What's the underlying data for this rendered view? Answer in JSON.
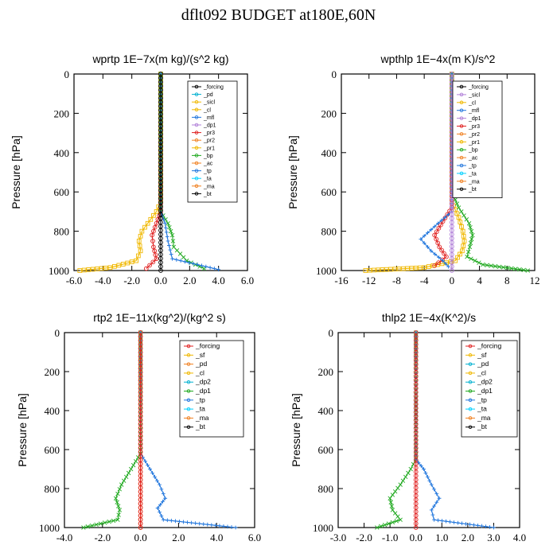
{
  "page": {
    "title": "dflt092  BUDGET at180E,60N"
  },
  "chart_data": [
    {
      "type": "line",
      "title": "wprtp   1E−7x(m kg)/(s^2 kg)",
      "ylabel": "Pressure [hPa]",
      "xlim": [
        -6,
        6
      ],
      "ylim": [
        1000,
        0
      ],
      "xticks": [
        "-6.0",
        "-4.0",
        "-2.0",
        "0.0",
        "2.0",
        "4.0",
        "6.0"
      ],
      "yticks": [
        "0",
        "200",
        "400",
        "600",
        "800",
        "1000"
      ],
      "legend": [
        "_forcing",
        "_pd",
        "_sicl",
        "_cl",
        "_mfl",
        "_dp1",
        "_pr3",
        "_pr2",
        "_pr1",
        "_bp",
        "_ac",
        "_tp",
        "_ta",
        "_ma",
        "_bt"
      ],
      "series": [
        {
          "name": "_pr1",
          "color": "#f0b800",
          "marker": "square",
          "points": [
            [
              0,
              0
            ],
            [
              0,
              650
            ],
            [
              -0.3,
              700
            ],
            [
              -0.9,
              760
            ],
            [
              -1.3,
              800
            ],
            [
              -1.5,
              850
            ],
            [
              -1.4,
              900
            ],
            [
              -1.7,
              950
            ],
            [
              -3.5,
              985
            ],
            [
              -5.6,
              1000
            ]
          ]
        },
        {
          "name": "_pr3",
          "color": "#e02020",
          "marker": "circle",
          "points": [
            [
              0,
              0
            ],
            [
              0,
              700
            ],
            [
              -0.3,
              760
            ],
            [
              -0.6,
              820
            ],
            [
              -0.5,
              880
            ],
            [
              -0.3,
              940
            ],
            [
              -1.0,
              990
            ]
          ]
        },
        {
          "name": "_bp",
          "color": "#22aa22",
          "marker": "x",
          "points": [
            [
              0,
              0
            ],
            [
              0,
              700
            ],
            [
              0.5,
              760
            ],
            [
              0.8,
              820
            ],
            [
              0.9,
              880
            ],
            [
              1.8,
              950
            ],
            [
              3.0,
              990
            ]
          ]
        },
        {
          "name": "_tp",
          "color": "#2277dd",
          "marker": "plus",
          "points": [
            [
              0,
              0
            ],
            [
              0,
              700
            ],
            [
              0.3,
              760
            ],
            [
              0.5,
              850
            ],
            [
              0.8,
              940
            ],
            [
              4.0,
              995
            ]
          ]
        },
        {
          "name": "_forcing",
          "color": "#000000",
          "marker": "circle",
          "points": [
            [
              0,
              0
            ],
            [
              0,
              1000
            ]
          ]
        }
      ]
    },
    {
      "type": "line",
      "title": "wpthlp   1E−4x(m K)/s^2",
      "ylabel": "Pressure [hPa]",
      "xlim": [
        -16,
        12
      ],
      "ylim": [
        1000,
        0
      ],
      "xticks": [
        "-16",
        "-12",
        "-8",
        "-4",
        "0",
        "4",
        "8",
        "12"
      ],
      "yticks": [
        "0",
        "200",
        "400",
        "600",
        "800",
        "1000"
      ],
      "legend": [
        "_forcing",
        "_sicl",
        "_cl",
        "_mfl",
        "_dp1",
        "_pr3",
        "_pr2",
        "_pr1",
        "_bp",
        "_ac",
        "_tp",
        "_ta",
        "_ma",
        "_bt"
      ],
      "series": [
        {
          "name": "_pr1",
          "color": "#f0b800",
          "marker": "square",
          "points": [
            [
              0,
              0
            ],
            [
              0,
              650
            ],
            [
              1.0,
              730
            ],
            [
              1.6,
              800
            ],
            [
              1.8,
              850
            ],
            [
              1.5,
              900
            ],
            [
              0.5,
              950
            ],
            [
              -4,
              985
            ],
            [
              -12.5,
              1000
            ]
          ]
        },
        {
          "name": "_bp",
          "color": "#22aa22",
          "marker": "x",
          "points": [
            [
              0,
              0
            ],
            [
              0,
              600
            ],
            [
              1.0,
              680
            ],
            [
              2.5,
              760
            ],
            [
              3.0,
              820
            ],
            [
              2.6,
              880
            ],
            [
              2.2,
              930
            ],
            [
              4.5,
              970
            ],
            [
              11,
              1000
            ]
          ]
        },
        {
          "name": "_pr3",
          "color": "#e02020",
          "marker": "circle",
          "points": [
            [
              0,
              0
            ],
            [
              0,
              680
            ],
            [
              -1.3,
              750
            ],
            [
              -2.5,
              820
            ],
            [
              -1.8,
              880
            ],
            [
              -0.8,
              930
            ],
            [
              -2.5,
              975
            ]
          ]
        },
        {
          "name": "_tp",
          "color": "#2277dd",
          "marker": "plus",
          "points": [
            [
              0,
              0
            ],
            [
              0,
              700
            ],
            [
              -2.0,
              760
            ],
            [
              -4.5,
              840
            ],
            [
              -3.0,
              900
            ],
            [
              -1.3,
              950
            ],
            [
              -0.5,
              980
            ]
          ]
        },
        {
          "name": "_sicl",
          "color": "#b07fd8",
          "marker": "circle",
          "points": [
            [
              0,
              0
            ],
            [
              0,
              1000
            ]
          ]
        }
      ]
    },
    {
      "type": "line",
      "title": "rtp2   1E−11x(kg^2)/(kg^2 s)",
      "ylabel": "Pressure [hPa]",
      "xlim": [
        -4,
        6
      ],
      "ylim": [
        1000,
        0
      ],
      "xticks": [
        "-4.0",
        "-2.0",
        "0.0",
        "2.0",
        "4.0",
        "6.0"
      ],
      "yticks": [
        "0",
        "200",
        "400",
        "600",
        "800",
        "1000"
      ],
      "legend": [
        "_forcing",
        "_sf",
        "_pd",
        "_cl",
        "_dp2",
        "_dp1",
        "_tp",
        "_ta",
        "_ma",
        "_bt"
      ],
      "series": [
        {
          "name": "_dp1",
          "color": "#22aa22",
          "marker": "x",
          "points": [
            [
              0,
              0
            ],
            [
              0,
              620
            ],
            [
              -0.5,
              700
            ],
            [
              -1.0,
              780
            ],
            [
              -1.3,
              850
            ],
            [
              -1.1,
              910
            ],
            [
              -1.2,
              960
            ],
            [
              -3.0,
              1000
            ]
          ]
        },
        {
          "name": "_tp",
          "color": "#2277dd",
          "marker": "plus",
          "points": [
            [
              0,
              0
            ],
            [
              0,
              620
            ],
            [
              0.5,
              700
            ],
            [
              1.0,
              780
            ],
            [
              1.3,
              850
            ],
            [
              0.9,
              900
            ],
            [
              1.2,
              960
            ],
            [
              5.0,
              1000
            ]
          ]
        },
        {
          "name": "_pd",
          "color": "#f08020",
          "marker": "circle",
          "points": [
            [
              0,
              0
            ],
            [
              0,
              1000
            ]
          ]
        },
        {
          "name": "_forcing",
          "color": "#e02020",
          "marker": "circle",
          "points": [
            [
              0,
              0
            ],
            [
              0,
              1000
            ]
          ]
        }
      ]
    },
    {
      "type": "line",
      "title": "thlp2   1E−4x(K^2)/s",
      "ylabel": "Pressure [hPa]",
      "xlim": [
        -3,
        4
      ],
      "ylim": [
        1000,
        0
      ],
      "xticks": [
        "-3.0",
        "-2.0",
        "-1.0",
        "0.0",
        "1.0",
        "2.0",
        "3.0",
        "4.0"
      ],
      "yticks": [
        "0",
        "200",
        "400",
        "600",
        "800",
        "1000"
      ],
      "legend": [
        "_forcing",
        "_sf",
        "_pd",
        "_cl",
        "_dp2",
        "_dp1",
        "_tp",
        "_ta",
        "_ma",
        "_bt"
      ],
      "series": [
        {
          "name": "_dp1",
          "color": "#22aa22",
          "marker": "x",
          "points": [
            [
              0,
              0
            ],
            [
              0,
              650
            ],
            [
              -0.2,
              700
            ],
            [
              -0.6,
              780
            ],
            [
              -1.0,
              850
            ],
            [
              -0.9,
              910
            ],
            [
              -0.6,
              960
            ],
            [
              -1.5,
              1000
            ]
          ]
        },
        {
          "name": "_tp",
          "color": "#2277dd",
          "marker": "plus",
          "points": [
            [
              0,
              0
            ],
            [
              0,
              650
            ],
            [
              0.3,
              700
            ],
            [
              0.6,
              780
            ],
            [
              0.9,
              850
            ],
            [
              0.6,
              910
            ],
            [
              0.7,
              960
            ],
            [
              3.0,
              1000
            ]
          ]
        },
        {
          "name": "_forcing",
          "color": "#e02020",
          "marker": "circle",
          "points": [
            [
              0,
              0
            ],
            [
              0,
              1000
            ]
          ]
        }
      ]
    }
  ]
}
